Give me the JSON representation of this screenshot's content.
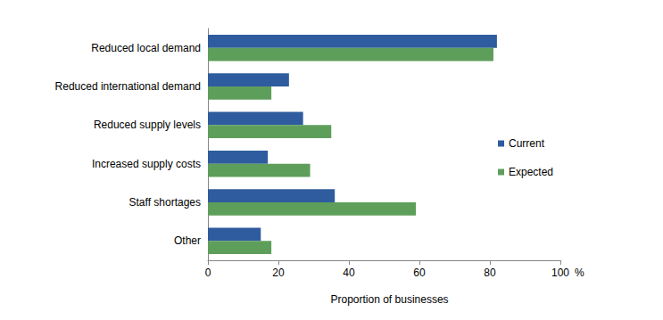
{
  "chart_data": {
    "type": "bar",
    "orientation": "horizontal",
    "categories": [
      "Reduced local demand",
      "Reduced international demand",
      "Reduced supply levels",
      "Increased supply costs",
      "Staff shortages",
      "Other"
    ],
    "series": [
      {
        "name": "Current",
        "color": "#2E5C9E",
        "values": [
          82,
          23,
          27,
          17,
          36,
          15
        ]
      },
      {
        "name": "Expected",
        "color": "#5E9E5B",
        "values": [
          81,
          18,
          35,
          29,
          59,
          18
        ]
      }
    ],
    "xlabel": "Proportion of businesses",
    "x_unit": "%",
    "xlim": [
      0,
      100
    ],
    "xticks": [
      0,
      20,
      40,
      60,
      80,
      100
    ],
    "grid": false,
    "legend": "right"
  }
}
